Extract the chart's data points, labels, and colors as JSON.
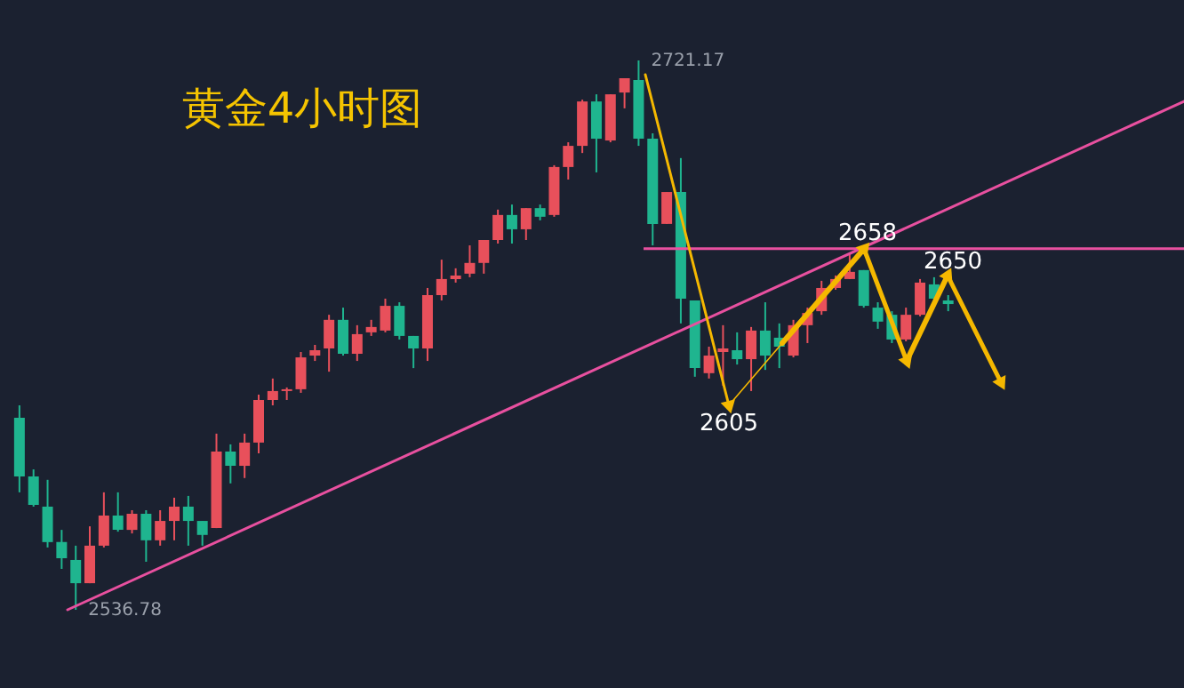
{
  "chart_data": {
    "type": "candlestick",
    "title": "黄金4小时图",
    "categories": [
      null,
      null,
      null,
      null,
      null,
      null,
      null,
      null,
      null,
      null,
      null,
      null,
      null,
      null,
      null,
      null,
      null,
      null,
      null,
      null,
      null,
      null,
      null,
      null,
      null,
      null,
      null,
      null,
      null,
      null,
      null,
      null,
      null,
      null,
      null,
      null,
      null,
      null,
      null,
      null,
      null,
      null,
      null,
      null,
      null,
      null,
      null,
      null,
      null,
      null,
      null,
      null,
      null,
      null,
      null,
      null,
      null,
      null,
      null,
      null,
      null,
      null,
      null,
      null,
      null,
      null,
      null
    ],
    "ohlc": [
      [
        2601.2,
        2605.4,
        2576.2,
        2581.5
      ],
      [
        2581.5,
        2583.9,
        2571.4,
        2572.0
      ],
      [
        2571.4,
        2580.4,
        2557.7,
        2559.5
      ],
      [
        2559.5,
        2563.6,
        2550.5,
        2554.1
      ],
      [
        2553.5,
        2558.3,
        2536.78,
        2545.7
      ],
      [
        2545.7,
        2564.8,
        2545.7,
        2558.3
      ],
      [
        2558.3,
        2576.2,
        2557.7,
        2568.4
      ],
      [
        2568.4,
        2576.2,
        2563.0,
        2563.6
      ],
      [
        2563.6,
        2570.2,
        2562.4,
        2569.0
      ],
      [
        2569.0,
        2570.2,
        2552.9,
        2560.1
      ],
      [
        2560.1,
        2570.2,
        2558.3,
        2566.6
      ],
      [
        2566.6,
        2574.4,
        2560.1,
        2571.4
      ],
      [
        2571.4,
        2575.0,
        2558.3,
        2566.6
      ],
      [
        2566.6,
        2566.6,
        2558.3,
        2561.9
      ],
      [
        2564.2,
        2595.9,
        2564.2,
        2589.9
      ],
      [
        2589.9,
        2592.3,
        2579.2,
        2585.1
      ],
      [
        2585.1,
        2595.9,
        2581.0,
        2592.9
      ],
      [
        2592.9,
        2609.0,
        2589.3,
        2607.2
      ],
      [
        2607.2,
        2614.4,
        2605.4,
        2610.2
      ],
      [
        2610.2,
        2611.4,
        2607.2,
        2610.8
      ],
      [
        2610.8,
        2623.3,
        2609.6,
        2621.5
      ],
      [
        2622.1,
        2625.7,
        2620.3,
        2623.9
      ],
      [
        2624.5,
        2635.8,
        2616.7,
        2634.1
      ],
      [
        2634.1,
        2638.2,
        2622.1,
        2622.7
      ],
      [
        2622.7,
        2632.3,
        2620.3,
        2629.3
      ],
      [
        2629.9,
        2634.1,
        2628.7,
        2631.7
      ],
      [
        2630.5,
        2641.2,
        2629.9,
        2638.8
      ],
      [
        2638.8,
        2640.0,
        2627.5,
        2628.7
      ],
      [
        2628.7,
        2628.7,
        2617.9,
        2624.5
      ],
      [
        2624.5,
        2644.8,
        2620.3,
        2642.4
      ],
      [
        2642.4,
        2654.3,
        2640.6,
        2647.8
      ],
      [
        2647.8,
        2651.4,
        2646.6,
        2649.0
      ],
      [
        2649.6,
        2659.1,
        2648.4,
        2653.2
      ],
      [
        2653.2,
        2660.9,
        2649.6,
        2660.9
      ],
      [
        2660.9,
        2671.1,
        2659.7,
        2669.3
      ],
      [
        2669.3,
        2672.8,
        2659.7,
        2664.5
      ],
      [
        2664.5,
        2671.6,
        2660.9,
        2671.6
      ],
      [
        2671.6,
        2672.8,
        2667.5,
        2668.7
      ],
      [
        2669.3,
        2686.0,
        2668.7,
        2685.4
      ],
      [
        2685.4,
        2693.7,
        2681.2,
        2692.5
      ],
      [
        2692.5,
        2708.0,
        2690.1,
        2707.4
      ],
      [
        2707.4,
        2709.8,
        2683.6,
        2694.9
      ],
      [
        2694.3,
        2709.8,
        2693.7,
        2709.8
      ],
      [
        2710.4,
        2715.2,
        2705.1,
        2715.2
      ],
      [
        2714.6,
        2721.17,
        2692.5,
        2694.9
      ],
      [
        2694.9,
        2696.7,
        2659.1,
        2666.3
      ],
      [
        2666.3,
        2677.0,
        2666.3,
        2677.0
      ],
      [
        2677.0,
        2688.4,
        2632.9,
        2641.2
      ],
      [
        2640.6,
        2640.6,
        2615.0,
        2617.9
      ],
      [
        2616.2,
        2625.1,
        2614.4,
        2622.1
      ],
      [
        2623.3,
        2632.3,
        2612.0,
        2624.5
      ],
      [
        2623.9,
        2629.9,
        2619.1,
        2620.9
      ],
      [
        2620.9,
        2631.7,
        2610.2,
        2630.5
      ],
      [
        2630.5,
        2640.0,
        2617.3,
        2622.1
      ],
      [
        2628.1,
        2632.9,
        2617.9,
        2625.1
      ],
      [
        2622.1,
        2634.1,
        2621.5,
        2632.3
      ],
      [
        2632.3,
        2638.2,
        2626.3,
        2636.4
      ],
      [
        2637.0,
        2647.2,
        2635.8,
        2644.8
      ],
      [
        2644.8,
        2649.0,
        2644.2,
        2647.8
      ],
      [
        2647.8,
        2656.1,
        2647.8,
        2650.2
      ],
      [
        2650.8,
        2650.8,
        2638.2,
        2638.8
      ],
      [
        2638.2,
        2640.0,
        2631.1,
        2633.5
      ],
      [
        2635.8,
        2637.0,
        2626.3,
        2627.5
      ],
      [
        2627.5,
        2638.2,
        2626.9,
        2635.8
      ],
      [
        2635.8,
        2647.8,
        2635.3,
        2646.6
      ],
      [
        2646.0,
        2648.4,
        2640.6,
        2641.2
      ],
      [
        2640.6,
        2642.4,
        2637.0,
        2639.4
      ]
    ],
    "colors": [
      "#1fb58f",
      "#1fb58f",
      "#1fb58f",
      "#1fb58f",
      "#1fb58f",
      "#e8505b",
      "#e8505b",
      "#1fb58f",
      "#e8505b",
      "#1fb58f",
      "#e8505b",
      "#e8505b",
      "#1fb58f",
      "#1fb58f",
      "#e8505b",
      "#1fb58f",
      "#e8505b",
      "#e8505b",
      "#e8505b",
      "#e8505b",
      "#e8505b",
      "#e8505b",
      "#e8505b",
      "#1fb58f",
      "#e8505b",
      "#e8505b",
      "#e8505b",
      "#1fb58f",
      "#1fb58f",
      "#e8505b",
      "#e8505b",
      "#e8505b",
      "#e8505b",
      "#e8505b",
      "#e8505b",
      "#1fb58f",
      "#e8505b",
      "#1fb58f",
      "#e8505b",
      "#e8505b",
      "#e8505b",
      "#1fb58f",
      "#e8505b",
      "#e8505b",
      "#1fb58f",
      "#1fb58f",
      "#e8505b",
      "#1fb58f",
      "#1fb58f",
      "#e8505b",
      "#e8505b",
      "#1fb58f",
      "#e8505b",
      "#1fb58f",
      "#1fb58f",
      "#e8505b",
      "#e8505b",
      "#e8505b",
      "#e8505b",
      "#e8505b",
      "#1fb58f",
      "#1fb58f",
      "#1fb58f",
      "#e8505b",
      "#e8505b",
      "#1fb58f",
      "#1fb58f"
    ],
    "ref_lines": [
      {
        "axis": "y",
        "value": 2658,
        "color": "#e8509f"
      }
    ],
    "annotations": [
      "2721.17",
      "2536.78",
      "2605",
      "2658",
      "2650"
    ]
  }
}
